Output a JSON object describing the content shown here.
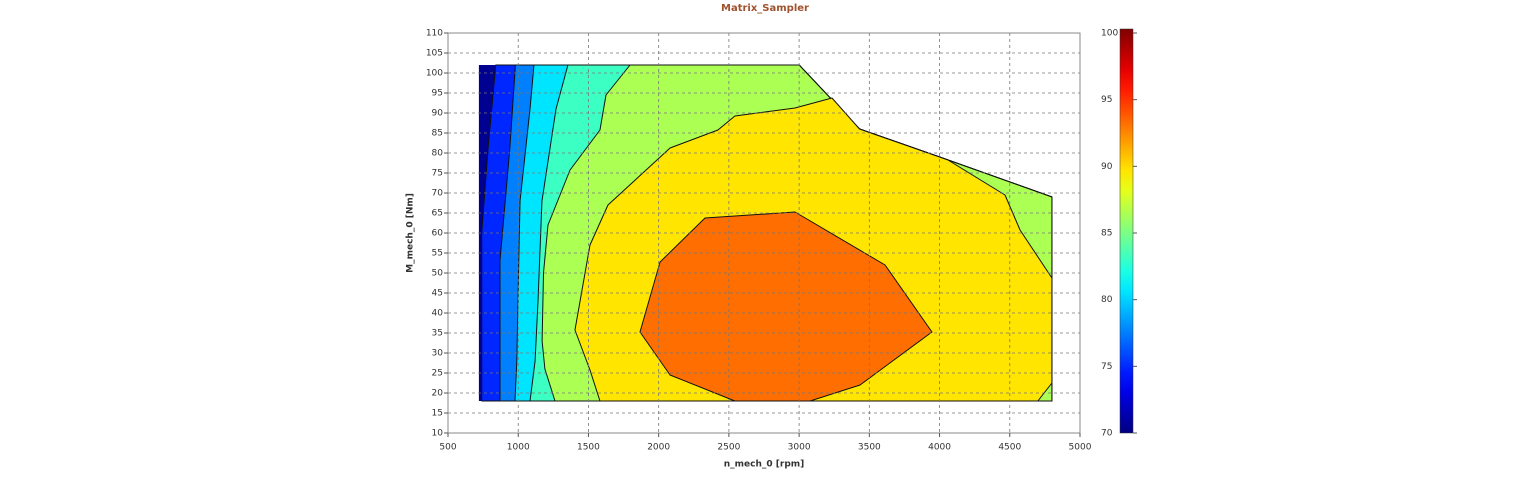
{
  "chart_data": {
    "type": "contour",
    "title": "Matrix_Sampler",
    "x_label": "n_mech_0 [rpm]",
    "y_label": "M_mech_0 [Nm]",
    "xlim": [
      500,
      5000
    ],
    "ylim": [
      10,
      110
    ],
    "xticks": [
      500,
      1000,
      1500,
      2000,
      2500,
      3000,
      3500,
      4000,
      4500,
      5000
    ],
    "yticks": [
      10,
      15,
      20,
      25,
      30,
      35,
      40,
      45,
      50,
      55,
      60,
      65,
      70,
      75,
      80,
      85,
      90,
      95,
      100,
      105,
      110
    ],
    "grid": true,
    "colormap": "jet",
    "clim": [
      70,
      100
    ],
    "cticks": [
      70,
      75,
      80,
      85,
      90,
      95,
      100
    ],
    "regions": [
      {
        "level": 70.5,
        "x": [
          720,
          3000,
          3430,
          4000,
          4800,
          4800,
          720
        ],
        "y": [
          102,
          102,
          86,
          79,
          69,
          18,
          18
        ]
      },
      {
        "level": 74.9,
        "x": [
          840,
          3000,
          3430,
          4000,
          4800,
          4800,
          740,
          740,
          785
        ],
        "y": [
          102,
          102,
          86,
          79,
          69,
          18,
          18,
          60,
          81
        ]
      },
      {
        "level": 77.5,
        "x": [
          980,
          3000,
          3430,
          4000,
          4800,
          4800,
          870,
          870,
          940
        ],
        "y": [
          102,
          102,
          86,
          79,
          69,
          18,
          18,
          53,
          81
        ]
      },
      {
        "level": 80.5,
        "x": [
          1112,
          3000,
          3430,
          4000,
          4800,
          4800,
          977,
          990,
          998,
          1013,
          1084
        ],
        "y": [
          102,
          102,
          86,
          79,
          69,
          18,
          18,
          28,
          43,
          68,
          91
        ]
      },
      {
        "level": 83,
        "x": [
          1354,
          3000,
          3430,
          4000,
          4800,
          4800,
          1084,
          1120,
          1141,
          1169,
          1269
        ],
        "y": [
          102,
          102,
          86,
          79,
          69,
          18,
          18,
          28,
          43,
          68,
          91
        ]
      },
      {
        "level": 86.3,
        "x": [
          1796,
          3000,
          3430,
          4000,
          4800,
          4800,
          1262,
          1190,
          1170,
          1180,
          1212,
          1369,
          1582,
          1625
        ],
        "y": [
          102,
          102,
          86,
          79,
          69,
          18,
          18,
          26,
          33,
          50,
          62,
          75.75,
          85.75,
          94.5
        ]
      },
      {
        "level": 89.5,
        "x": [
          3234,
          3430,
          4000,
          4060,
          4466,
          4573,
          4800,
          4800,
          4700,
          1582,
          1511,
          1404,
          1511,
          1639,
          2081,
          2422,
          2543,
          2971
        ],
        "y": [
          93.75,
          86,
          79,
          78.25,
          69.5,
          60.75,
          48.75,
          22.5,
          18,
          18,
          25.75,
          35.75,
          57,
          67,
          81.25,
          85.75,
          89.25,
          91.25
        ]
      },
      {
        "level": 93,
        "x": [
          1867,
          2010,
          2330,
          2971,
          3612,
          3946,
          3434,
          3078,
          2543,
          2081
        ],
        "y": [
          35.25,
          52.75,
          63.75,
          65.25,
          52,
          35.25,
          22,
          18,
          18,
          24.5
        ]
      }
    ]
  }
}
